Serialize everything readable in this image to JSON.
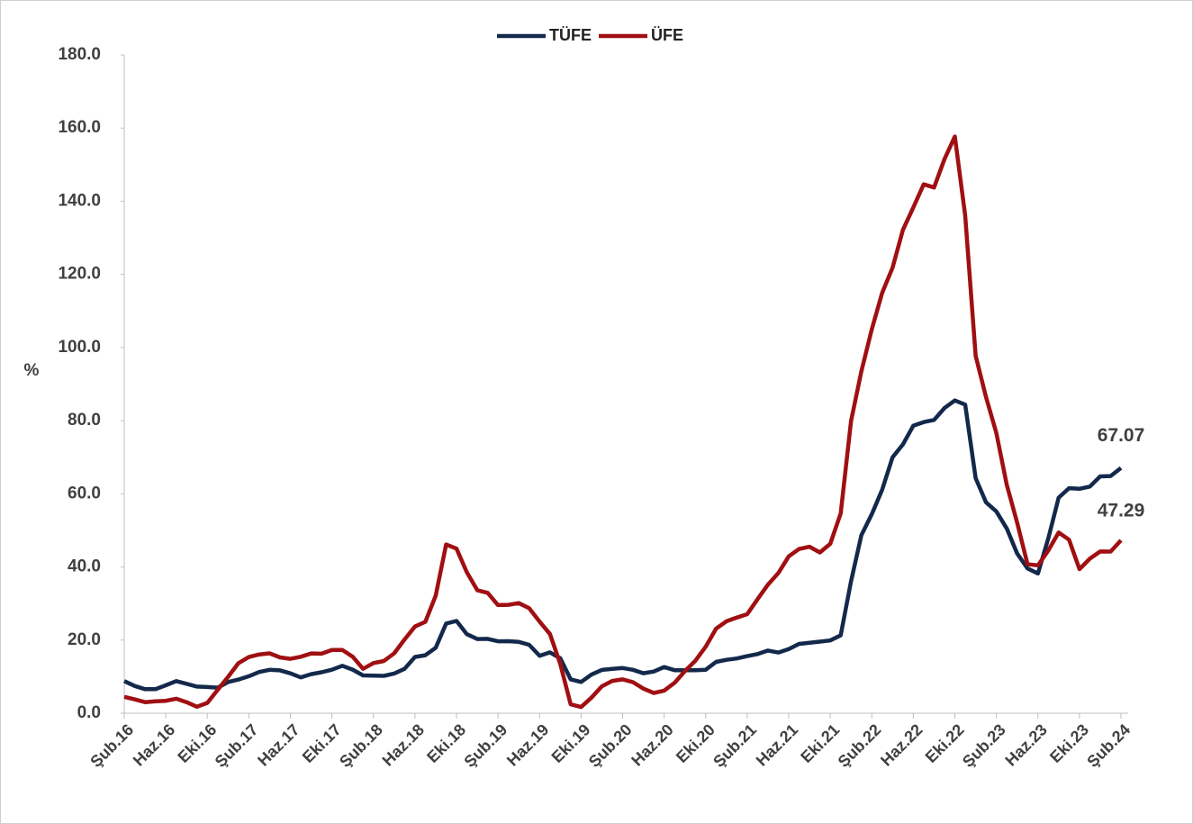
{
  "chart_data": {
    "type": "line",
    "y_label": "%",
    "categories": [
      "Şub.16",
      null,
      null,
      null,
      "Haz.16",
      null,
      null,
      null,
      "Eki.16",
      null,
      null,
      null,
      "Şub.17",
      null,
      null,
      null,
      "Haz.17",
      null,
      null,
      null,
      "Eki.17",
      null,
      null,
      null,
      "Şub.18",
      null,
      null,
      null,
      "Haz.18",
      null,
      null,
      null,
      "Eki.18",
      null,
      null,
      null,
      "Şub.19",
      null,
      null,
      null,
      "Haz.19",
      null,
      null,
      null,
      "Eki.19",
      null,
      null,
      null,
      "Şub.20",
      null,
      null,
      null,
      "Haz.20",
      null,
      null,
      null,
      "Eki.20",
      null,
      null,
      null,
      "Şub.21",
      null,
      null,
      null,
      "Haz.21",
      null,
      null,
      null,
      "Eki.21",
      null,
      null,
      null,
      "Şub.22",
      null,
      null,
      null,
      "Haz.22",
      null,
      null,
      null,
      "Eki.22",
      null,
      null,
      null,
      "Şub.23",
      null,
      null,
      null,
      "Haz.23",
      null,
      null,
      null,
      "Eki.23",
      null,
      null,
      null,
      "Şub.24"
    ],
    "series": [
      {
        "name": "TÜFE",
        "color": "#13294b",
        "values": [
          8.78,
          7.46,
          6.57,
          6.58,
          7.64,
          8.79,
          8.05,
          7.28,
          7.16,
          7.0,
          8.53,
          9.22,
          10.13,
          11.29,
          11.87,
          11.72,
          10.9,
          9.79,
          10.68,
          11.2,
          11.9,
          12.98,
          11.92,
          10.35,
          10.26,
          10.23,
          10.85,
          12.15,
          15.39,
          15.85,
          17.9,
          24.52,
          25.24,
          21.62,
          20.3,
          20.35,
          19.67,
          19.71,
          19.5,
          18.71,
          15.72,
          16.65,
          15.01,
          9.26,
          8.55,
          10.56,
          11.84,
          12.15,
          12.37,
          11.86,
          10.94,
          11.39,
          12.62,
          11.76,
          11.77,
          11.75,
          11.89,
          14.03,
          14.6,
          14.97,
          15.61,
          16.19,
          17.14,
          16.59,
          17.53,
          18.95,
          19.25,
          19.58,
          19.89,
          21.31,
          36.08,
          48.69,
          54.44,
          61.14,
          69.97,
          73.5,
          78.62,
          79.6,
          80.21,
          83.45,
          85.51,
          84.39,
          64.27,
          57.68,
          55.18,
          50.51,
          43.68,
          39.59,
          38.21,
          47.83,
          58.94,
          61.53,
          61.36,
          61.98,
          64.77,
          64.86,
          67.07
        ]
      },
      {
        "name": "ÜFE",
        "color": "#a00f12",
        "values": [
          4.49,
          3.8,
          3.03,
          3.25,
          3.41,
          3.96,
          3.03,
          1.78,
          2.84,
          6.41,
          9.94,
          13.69,
          15.36,
          16.09,
          16.37,
          15.26,
          14.87,
          15.45,
          16.34,
          16.28,
          17.28,
          17.3,
          15.47,
          12.14,
          13.71,
          14.28,
          16.37,
          20.16,
          23.71,
          25.0,
          32.13,
          46.15,
          45.01,
          38.54,
          33.64,
          32.93,
          29.58,
          29.64,
          30.12,
          28.71,
          25.04,
          21.66,
          13.45,
          2.45,
          1.7,
          4.26,
          7.36,
          8.84,
          9.26,
          8.5,
          6.71,
          5.53,
          6.17,
          8.33,
          11.53,
          14.33,
          18.2,
          23.11,
          25.15,
          26.16,
          27.09,
          31.2,
          35.17,
          38.33,
          42.89,
          44.92,
          45.52,
          43.96,
          46.31,
          54.62,
          79.89,
          93.53,
          105.01,
          114.97,
          121.82,
          132.16,
          138.31,
          144.61,
          143.75,
          151.5,
          157.69,
          136.02,
          97.72,
          86.46,
          76.61,
          62.43,
          52.11,
          40.76,
          40.42,
          44.5,
          49.41,
          47.44,
          39.39,
          42.25,
          44.22,
          44.2,
          47.29
        ]
      }
    ],
    "ylim": [
      0,
      180
    ],
    "yticks": [
      {
        "value": 0,
        "label": "0.0"
      },
      {
        "value": 20,
        "label": "20.0"
      },
      {
        "value": 40,
        "label": "40.0"
      },
      {
        "value": 60,
        "label": "60.0"
      },
      {
        "value": 80,
        "label": "80.0"
      },
      {
        "value": 100,
        "label": "100.0"
      },
      {
        "value": 120,
        "label": "120.0"
      },
      {
        "value": 140,
        "label": "140.0"
      },
      {
        "value": 160,
        "label": "160.0"
      },
      {
        "value": 180,
        "label": "180.0"
      }
    ],
    "legend": "top"
  }
}
